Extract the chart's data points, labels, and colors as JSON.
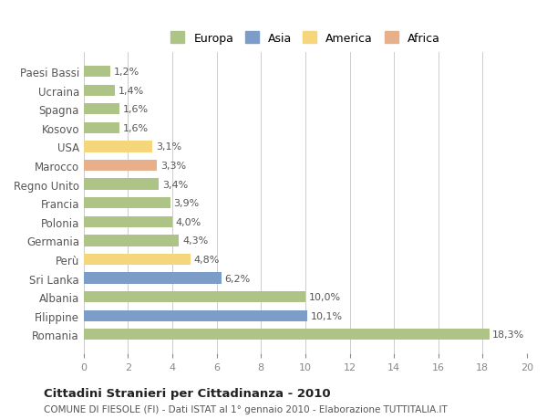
{
  "categories": [
    "Romania",
    "Filippine",
    "Albania",
    "Sri Lanka",
    "Perù",
    "Germania",
    "Polonia",
    "Francia",
    "Regno Unito",
    "Marocco",
    "USA",
    "Kosovo",
    "Spagna",
    "Ucraina",
    "Paesi Bassi"
  ],
  "values": [
    18.3,
    10.1,
    10.0,
    6.2,
    4.8,
    4.3,
    4.0,
    3.9,
    3.4,
    3.3,
    3.1,
    1.6,
    1.6,
    1.4,
    1.2
  ],
  "labels": [
    "18,3%",
    "10,1%",
    "10,0%",
    "6,2%",
    "4,8%",
    "4,3%",
    "4,0%",
    "3,9%",
    "3,4%",
    "3,3%",
    "3,1%",
    "1,6%",
    "1,6%",
    "1,4%",
    "1,2%"
  ],
  "colors": [
    "#aec486",
    "#7b9dc7",
    "#aec486",
    "#7b9dc7",
    "#f5d67a",
    "#aec486",
    "#aec486",
    "#aec486",
    "#aec486",
    "#e8b08a",
    "#f5d67a",
    "#aec486",
    "#aec486",
    "#aec486",
    "#aec486"
  ],
  "legend": {
    "Europa": "#aec486",
    "Asia": "#7b9dc7",
    "America": "#f5d67a",
    "Africa": "#e8b08a"
  },
  "title": "Cittadini Stranieri per Cittadinanza - 2010",
  "subtitle": "COMUNE DI FIESOLE (FI) - Dati ISTAT al 1° gennaio 2010 - Elaborazione TUTTITALIA.IT",
  "xlim": [
    0,
    20
  ],
  "xticks": [
    0,
    2,
    4,
    6,
    8,
    10,
    12,
    14,
    16,
    18,
    20
  ],
  "background_color": "#ffffff",
  "grid_color": "#cccccc",
  "bar_height": 0.6
}
